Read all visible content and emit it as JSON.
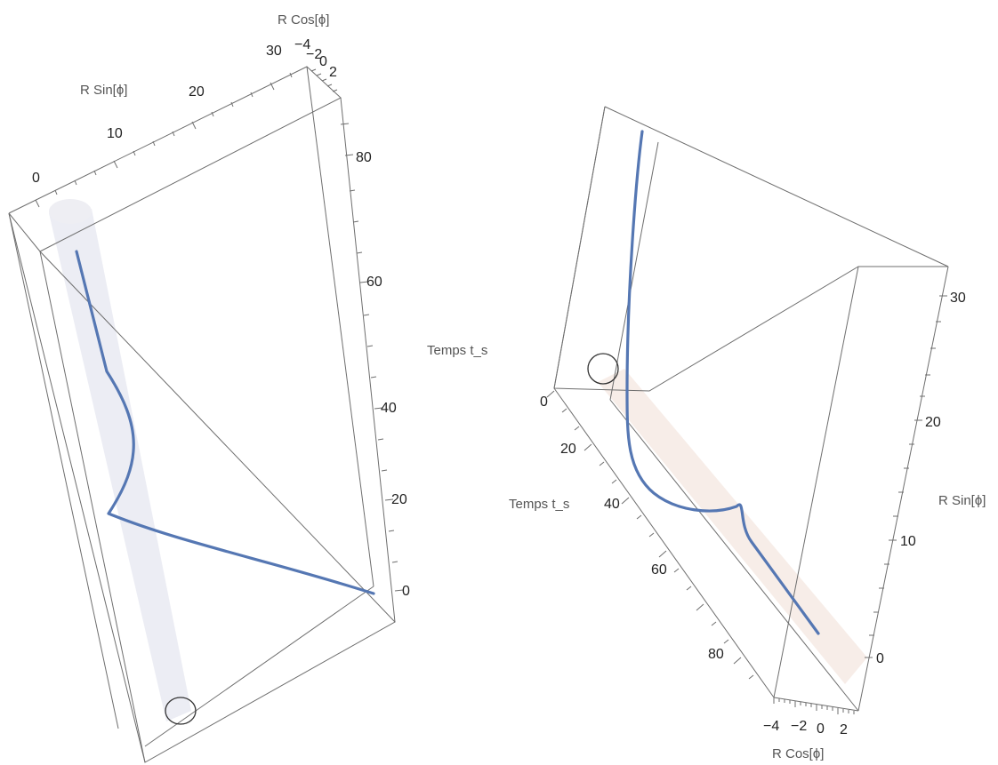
{
  "chart_data": [
    {
      "type": "line",
      "view": "left 3D box",
      "axes": {
        "rsin": {
          "label": "R Sin[ϕ]",
          "ticks": [
            "0",
            "10",
            "20",
            "30"
          ],
          "range": [
            0,
            33
          ]
        },
        "rcos": {
          "label": "R Cos[ϕ]",
          "ticks": [
            "−4",
            "−2",
            "0",
            "2"
          ],
          "range": [
            -4.5,
            2.5
          ]
        },
        "time": {
          "label": "Temps t_s",
          "ticks": [
            "0",
            "20",
            "40",
            "60",
            "80"
          ],
          "range": [
            0,
            92
          ]
        }
      },
      "series": [
        {
          "color": "#5577b3",
          "points_t_rsin": [
            [
              0,
              31
            ],
            [
              5,
              24
            ],
            [
              10,
              16
            ],
            [
              15,
              6
            ],
            [
              19,
              2
            ],
            [
              25,
              3.5
            ],
            [
              30,
              5
            ],
            [
              35,
              4.5
            ],
            [
              42,
              3
            ],
            [
              50,
              2.5
            ],
            [
              60,
              2
            ],
            [
              70,
              1.5
            ],
            [
              80,
              1
            ],
            [
              88,
              0.5
            ]
          ]
        }
      ],
      "cylinder": {
        "color": "#e5e6ef",
        "rsin": 0,
        "rcos": 0
      }
    },
    {
      "type": "line",
      "view": "right 3D box",
      "axes": {
        "time": {
          "label": "Temps t_s",
          "ticks": [
            "0",
            "20",
            "40",
            "60",
            "80"
          ],
          "range": [
            0,
            92
          ]
        },
        "rsin": {
          "label": "R Sin[ϕ]",
          "ticks": [
            "0",
            "10",
            "20",
            "30"
          ],
          "range": [
            -2,
            33
          ]
        },
        "rcos": {
          "label": "R Cos[ϕ]",
          "ticks": [
            "−4",
            "−2",
            "0",
            "2"
          ],
          "range": [
            -4.5,
            2.5
          ]
        }
      },
      "series": [
        {
          "color": "#5577b3",
          "points_t_rsin": [
            [
              88,
              0.5
            ],
            [
              80,
              1
            ],
            [
              70,
              1.5
            ],
            [
              60,
              2
            ],
            [
              50,
              2.5
            ],
            [
              42,
              3
            ],
            [
              36,
              4.5
            ],
            [
              30,
              4.8
            ],
            [
              25,
              4
            ],
            [
              22,
              5
            ],
            [
              19,
              6
            ],
            [
              14,
              14
            ],
            [
              10,
              22
            ],
            [
              5,
              28
            ],
            [
              0,
              31
            ]
          ]
        }
      ],
      "cylinder": {
        "color": "#f4e6de",
        "rsin": 0,
        "rcos": 0
      }
    }
  ]
}
